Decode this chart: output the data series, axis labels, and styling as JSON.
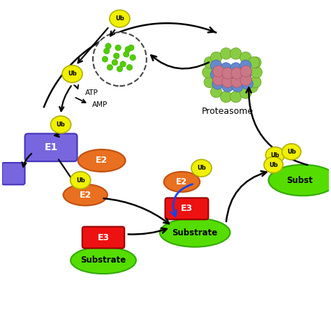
{
  "bg_color": "#ffffff",
  "yellow_color": "#f0f000",
  "yellow_edge": "#b0b000",
  "green_color": "#55dd00",
  "green_edge": "#33aa00",
  "orange_color": "#e87020",
  "orange_edge": "#c05010",
  "red_color": "#ee1111",
  "red_edge": "#990000",
  "purple_color": "#7766dd",
  "purple_edge": "#4433bb",
  "blue_arrow": "#1144ee",
  "black_arrow": "#000000",
  "font_color": "#000000",
  "ub_label": "Ub",
  "e1_label": "E1",
  "e2_label": "E2",
  "e3_label": "E3",
  "substrate_label": "Substrate",
  "proteasome_label": "Proteasome",
  "atp_label": "ATP",
  "amp_label": "AMP",
  "subst_label": "Subst"
}
